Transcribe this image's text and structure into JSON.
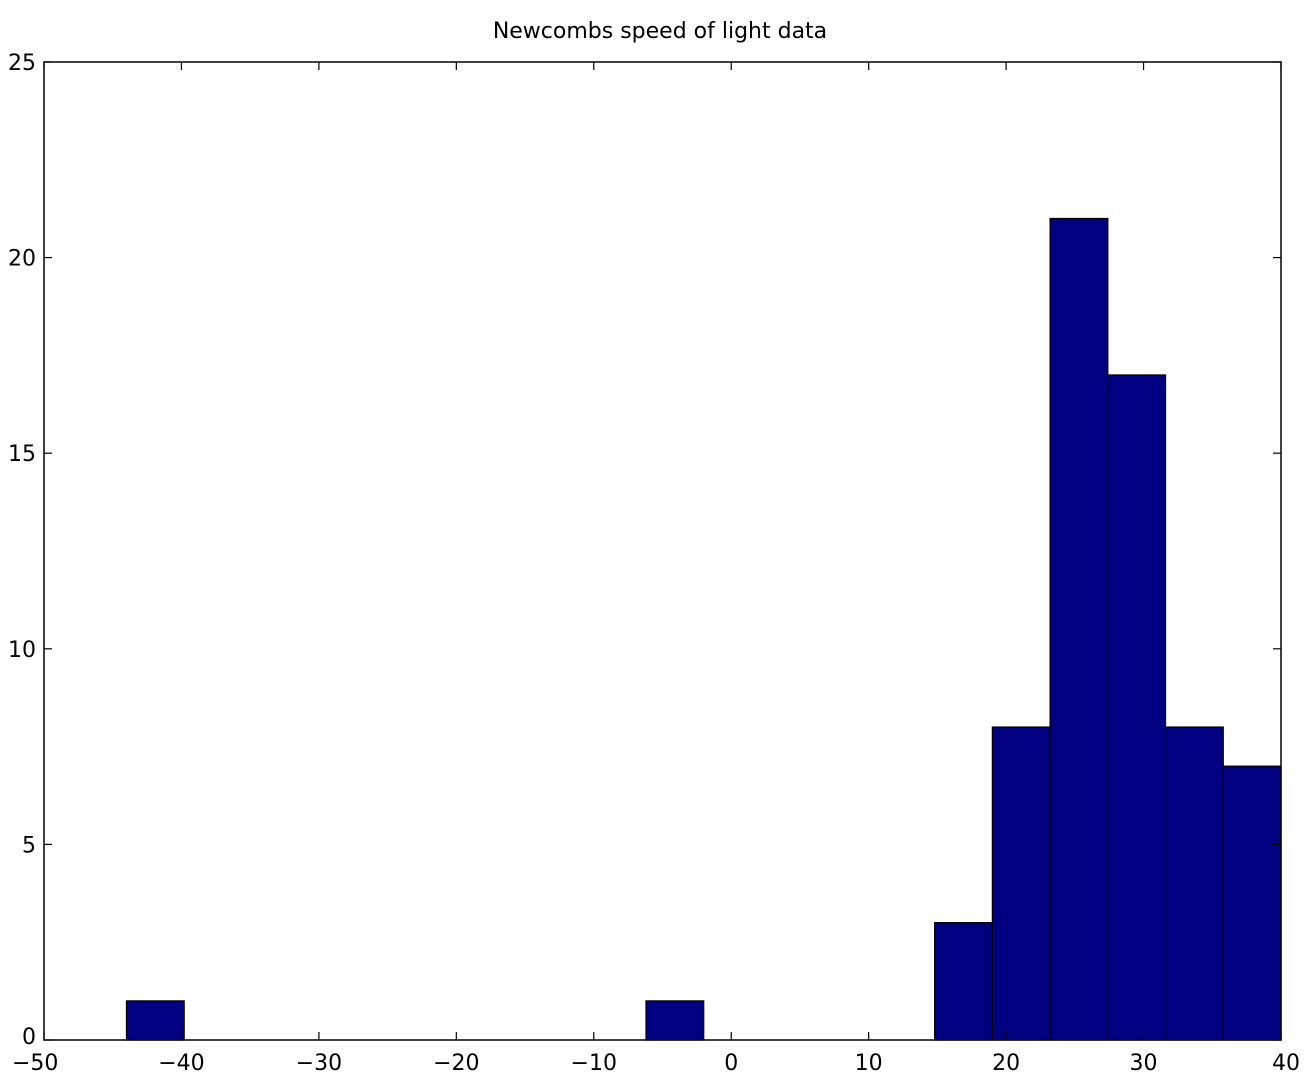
{
  "chart_data": {
    "type": "bar",
    "title": "Newcombs speed of light data",
    "xlabel": "",
    "ylabel": "",
    "xlim": [
      -50,
      40
    ],
    "ylim": [
      0,
      25
    ],
    "xticks": [
      -50,
      -40,
      -30,
      -20,
      -10,
      0,
      10,
      20,
      30,
      40
    ],
    "yticks": [
      0,
      5,
      10,
      15,
      20,
      25
    ],
    "grid": false,
    "bar_color": "#000080",
    "edge_color": "#000000",
    "bins": [
      {
        "x0": -44.0,
        "x1": -39.8,
        "count": 1
      },
      {
        "x0": -39.8,
        "x1": -35.6,
        "count": 0
      },
      {
        "x0": -35.6,
        "x1": -31.4,
        "count": 0
      },
      {
        "x0": -31.4,
        "x1": -27.2,
        "count": 0
      },
      {
        "x0": -27.2,
        "x1": -23.0,
        "count": 0
      },
      {
        "x0": -23.0,
        "x1": -18.8,
        "count": 0
      },
      {
        "x0": -18.8,
        "x1": -14.6,
        "count": 0
      },
      {
        "x0": -14.6,
        "x1": -10.4,
        "count": 0
      },
      {
        "x0": -10.4,
        "x1": -6.2,
        "count": 0
      },
      {
        "x0": -6.2,
        "x1": -2.0,
        "count": 1
      },
      {
        "x0": -2.0,
        "x1": 2.2,
        "count": 0
      },
      {
        "x0": 2.2,
        "x1": 6.4,
        "count": 0
      },
      {
        "x0": 6.4,
        "x1": 10.6,
        "count": 0
      },
      {
        "x0": 10.6,
        "x1": 14.8,
        "count": 0
      },
      {
        "x0": 14.8,
        "x1": 19.0,
        "count": 3
      },
      {
        "x0": 19.0,
        "x1": 23.2,
        "count": 8
      },
      {
        "x0": 23.2,
        "x1": 27.4,
        "count": 21
      },
      {
        "x0": 27.4,
        "x1": 31.6,
        "count": 17
      },
      {
        "x0": 31.6,
        "x1": 35.8,
        "count": 8
      },
      {
        "x0": 35.8,
        "x1": 40.0,
        "count": 7
      }
    ]
  }
}
